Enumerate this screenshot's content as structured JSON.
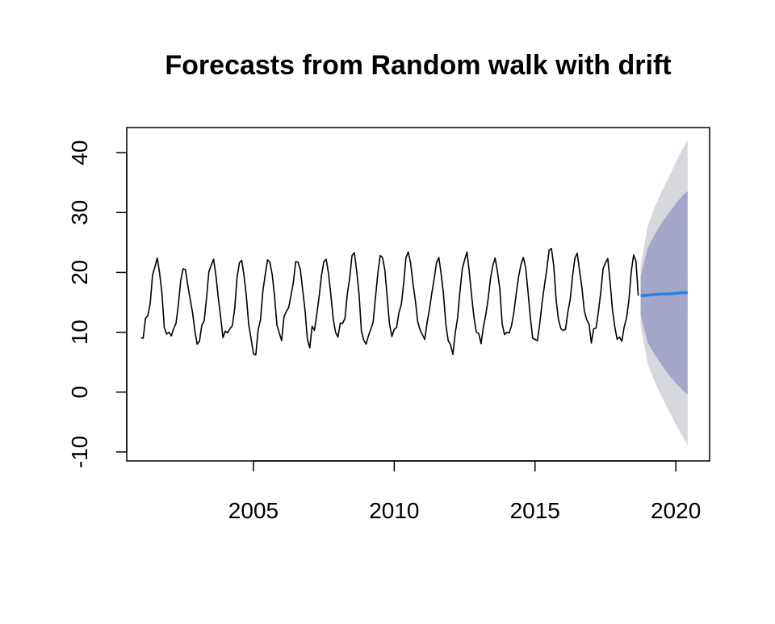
{
  "chart_data": {
    "type": "line",
    "title": "Forecasts from Random walk with drift",
    "xlabel": "",
    "ylabel": "",
    "xlim": [
      2000.5,
      2021.2
    ],
    "ylim": [
      -11.5,
      44.2
    ],
    "x_ticks": [
      2005,
      2010,
      2015,
      2020
    ],
    "x_tick_labels": [
      "2005",
      "2010",
      "2015",
      "2020"
    ],
    "y_ticks": [
      -10,
      0,
      10,
      20,
      30,
      40
    ],
    "y_tick_labels": [
      "-10",
      "0",
      "10",
      "20",
      "30",
      "40"
    ],
    "grid": false,
    "legend": "none",
    "colors": {
      "history": "#000000",
      "forecast": "#2283e0",
      "interval_80": "#a3a6c9",
      "interval_95": "#d7d7de",
      "frame": "#000000"
    },
    "history": {
      "start": 2001.0,
      "frequency": 12,
      "values": [
        9.1,
        9.0,
        12.3,
        12.8,
        14.8,
        19.6,
        20.9,
        22.4,
        19.9,
        16.5,
        10.8,
        9.7,
        10.0,
        9.4,
        10.6,
        11.5,
        14.6,
        18.6,
        20.6,
        20.5,
        17.9,
        15.6,
        13.4,
        10.3,
        8.0,
        8.5,
        11.2,
        11.9,
        15.7,
        20.1,
        21.2,
        22.2,
        19.5,
        15.8,
        12.6,
        9.1,
        10.2,
        9.9,
        10.6,
        11.1,
        13.9,
        19.1,
        21.6,
        22.0,
        19.4,
        15.9,
        11.2,
        8.9,
        6.4,
        6.2,
        10.4,
        12.1,
        16.8,
        19.6,
        22.1,
        21.7,
        19.6,
        16.0,
        11.2,
        9.9,
        8.6,
        12.6,
        13.5,
        14.1,
        16.2,
        18.3,
        21.8,
        21.7,
        20.4,
        17.0,
        13.6,
        8.8,
        7.4,
        11.0,
        10.3,
        13.0,
        16.0,
        19.5,
        21.8,
        22.2,
        19.8,
        16.2,
        12.2,
        10.0,
        9.2,
        11.5,
        11.5,
        12.3,
        16.4,
        19.0,
        22.8,
        23.3,
        20.2,
        16.4,
        10.2,
        8.7,
        8.0,
        9.4,
        10.5,
        11.7,
        15.8,
        19.8,
        22.8,
        22.5,
        20.4,
        15.8,
        11.3,
        9.3,
        10.5,
        10.8,
        13.3,
        14.6,
        18.1,
        22.5,
        23.4,
        21.5,
        18.1,
        15.3,
        11.8,
        10.4,
        9.6,
        8.8,
        11.6,
        13.8,
        16.5,
        18.9,
        21.6,
        22.5,
        19.7,
        16.3,
        11.3,
        8.6,
        7.9,
        6.3,
        9.9,
        12.4,
        16.8,
        20.6,
        22.1,
        23.4,
        20.0,
        16.0,
        12.4,
        10.0,
        9.8,
        8.1,
        10.9,
        12.9,
        15.5,
        18.9,
        21.1,
        22.4,
        20.1,
        17.2,
        11.4,
        9.6,
        10.0,
        9.9,
        11.1,
        13.4,
        16.5,
        19.3,
        21.3,
        22.5,
        20.8,
        16.8,
        12.5,
        9.0,
        8.8,
        8.6,
        11.4,
        14.9,
        17.8,
        20.5,
        23.7,
        24.0,
        21.0,
        15.4,
        12.1,
        10.6,
        10.3,
        10.5,
        13.4,
        15.5,
        19.4,
        22.4,
        23.2,
        20.2,
        17.4,
        13.6,
        12.1,
        11.4,
        8.2,
        10.6,
        10.7,
        13.4,
        16.6,
        20.6,
        21.6,
        22.3,
        18.4,
        13.7,
        10.9,
        8.8,
        9.2,
        8.5,
        10.9,
        12.4,
        15.3,
        20.1,
        22.9,
        21.9,
        16.1
      ]
    },
    "forecast": {
      "x": [
        2018.75,
        2019.0,
        2019.25,
        2019.5,
        2019.75,
        2020.0,
        2020.25,
        2020.42
      ],
      "mean": [
        16.1,
        16.2,
        16.3,
        16.4,
        16.4,
        16.5,
        16.6,
        16.6
      ],
      "lo80": [
        12.9,
        8.3,
        6.3,
        4.5,
        2.9,
        1.5,
        0.3,
        -0.4
      ],
      "hi80": [
        19.3,
        24.1,
        26.3,
        28.3,
        29.9,
        31.5,
        32.9,
        33.6
      ],
      "lo95": [
        11.2,
        4.7,
        1.7,
        -0.8,
        -3.1,
        -5.4,
        -7.5,
        -8.9
      ],
      "hi95": [
        21.0,
        27.7,
        30.9,
        33.6,
        35.9,
        38.4,
        40.7,
        42.1
      ]
    }
  }
}
